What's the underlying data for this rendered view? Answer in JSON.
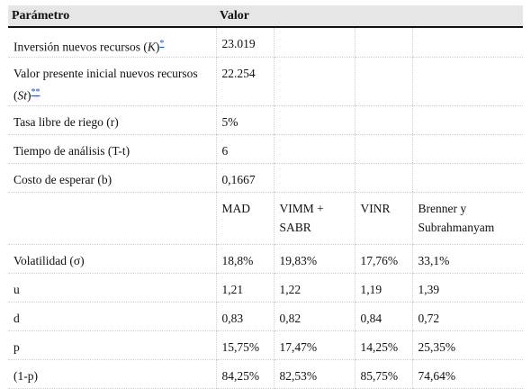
{
  "header": {
    "param": "Parámetro",
    "valor": "Valor"
  },
  "row1": {
    "pre": "Inversión nuevos recursos (",
    "var": "K",
    "post": ")",
    "ref": "*",
    "value": "23.019"
  },
  "row2": {
    "pre": "Valor presente inicial nuevos recursos (",
    "var": "St",
    "post": ")",
    "ref": "**",
    "value": "22.254"
  },
  "simple_rows": [
    {
      "label": "Tasa libre de riego (r)",
      "value": "5%"
    },
    {
      "label": "Tiempo de análisis (T-t)",
      "value": "6"
    },
    {
      "label": "Costo de esperar (b)",
      "value": "0,1667"
    }
  ],
  "methods": [
    "MAD",
    "VIMM + SABR",
    "VINR",
    "Brenner y Subrahmanyam"
  ],
  "stats": [
    {
      "label": "Volatilidad (σ)",
      "values": [
        "18,8%",
        "19,83%",
        "17,76%",
        "33,1%"
      ]
    },
    {
      "label": "u",
      "values": [
        "1,21",
        "1,22",
        "1,19",
        "1,39"
      ]
    },
    {
      "label": "d",
      "values": [
        "0,83",
        "0,82",
        "0,84",
        "0,72"
      ]
    },
    {
      "label": "p",
      "values": [
        "15,75%",
        "17,47%",
        "14,25%",
        "25,35%"
      ]
    },
    {
      "label": "(1-p)",
      "values": [
        "84,25%",
        "82,53%",
        "85,75%",
        "74,64%"
      ]
    }
  ]
}
